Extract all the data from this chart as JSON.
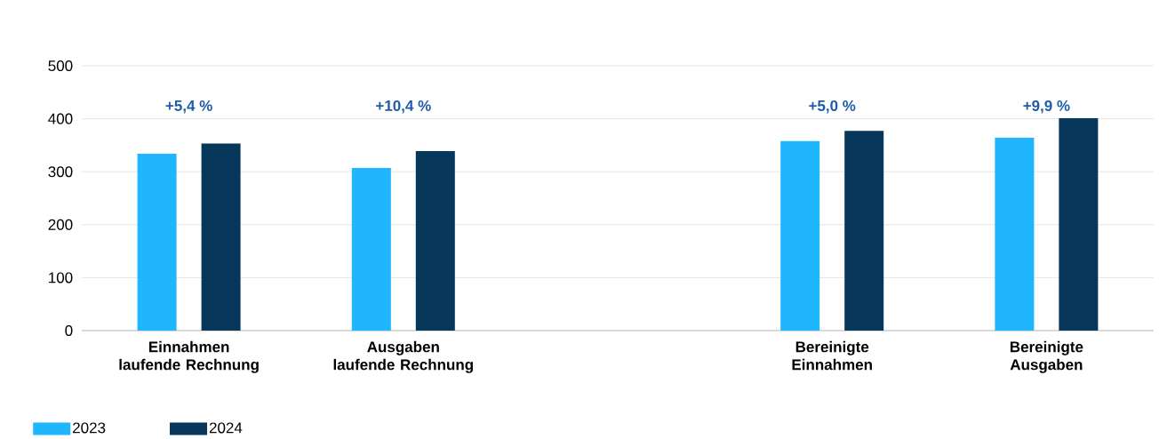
{
  "chart_data": {
    "type": "bar",
    "categories": [
      "Einnahmen\nlaufende Rechnung",
      "Ausgaben\nlaufende Rechnung",
      null,
      "Bereinigte\nEinnahmen",
      "Bereinigte\nAusgaben"
    ],
    "series": [
      {
        "name": "2023",
        "color": "#1fb6fd",
        "values": [
          334,
          307,
          null,
          358,
          364
        ]
      },
      {
        "name": "2024",
        "color": "#07375a",
        "values": [
          353,
          339,
          null,
          377,
          401
        ]
      }
    ],
    "ylim": [
      0,
      500
    ],
    "yticks": [
      0,
      100,
      200,
      300,
      400,
      500
    ],
    "grid": "y",
    "legend": "bottom left",
    "annotations": [
      "+5,4 %",
      "+10,4 %",
      "+5,0 %",
      "+9,9 %"
    ]
  }
}
